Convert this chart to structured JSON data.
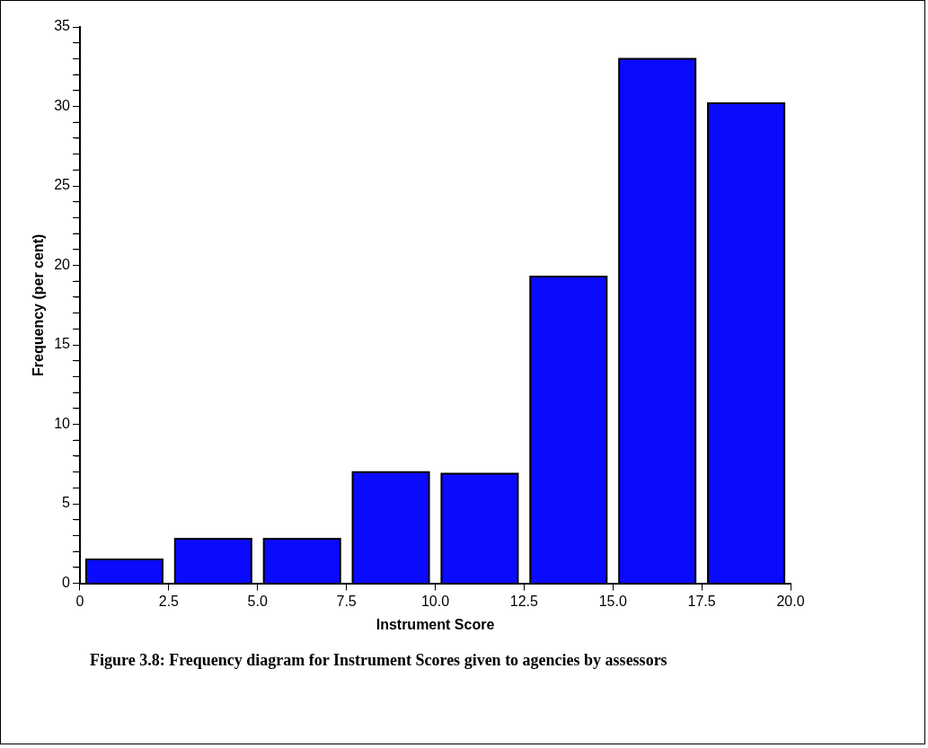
{
  "chart_data": {
    "type": "histogram",
    "xlabel": "Instrument Score",
    "ylabel": "Frequency (per cent)",
    "bins": [
      0,
      2.5,
      5,
      7.5,
      10,
      12.5,
      15,
      17.5,
      20
    ],
    "values": [
      1.5,
      2.8,
      2.8,
      7.0,
      6.9,
      19.3,
      33.0,
      30.2
    ],
    "color": "#0a0aff",
    "xlim": [
      0,
      20
    ],
    "xticks": [
      0,
      2.5,
      {
        "value": 5,
        "label": "5.0"
      },
      7.5,
      {
        "value": 10,
        "label": "10.0"
      },
      12.5,
      {
        "value": 15,
        "label": "15.0"
      },
      17.5,
      {
        "value": 20,
        "label": "20.0"
      }
    ],
    "ylim": [
      0,
      35
    ],
    "yticks": [
      0,
      {
        "value": 1,
        "label": null
      },
      {
        "value": 2,
        "label": null
      },
      {
        "value": 3,
        "label": null
      },
      {
        "value": 4,
        "label": null
      },
      5,
      {
        "value": 6,
        "label": null
      },
      {
        "value": 7,
        "label": null
      },
      {
        "value": 8,
        "label": null
      },
      {
        "value": 9,
        "label": null
      },
      10,
      {
        "value": 11,
        "label": null
      },
      {
        "value": 12,
        "label": null
      },
      {
        "value": 13,
        "label": null
      },
      {
        "value": 14,
        "label": null
      },
      15,
      {
        "value": 16,
        "label": null
      },
      {
        "value": 17,
        "label": null
      },
      {
        "value": 18,
        "label": null
      },
      {
        "value": 19,
        "label": null
      },
      20,
      {
        "value": 21,
        "label": null
      },
      {
        "value": 22,
        "label": null
      },
      {
        "value": 23,
        "label": null
      },
      {
        "value": 24,
        "label": null
      },
      25,
      {
        "value": 26,
        "label": null
      },
      {
        "value": 27,
        "label": null
      },
      {
        "value": 28,
        "label": null
      },
      {
        "value": 29,
        "label": null
      },
      30,
      {
        "value": 31,
        "label": null
      },
      {
        "value": 32,
        "label": null
      },
      {
        "value": 33,
        "label": null
      },
      {
        "value": 34,
        "label": null
      },
      35
    ],
    "annotations": [
      "Figure 3.8: Frequency diagram for Instrument Scores given to agencies by assessors"
    ]
  }
}
